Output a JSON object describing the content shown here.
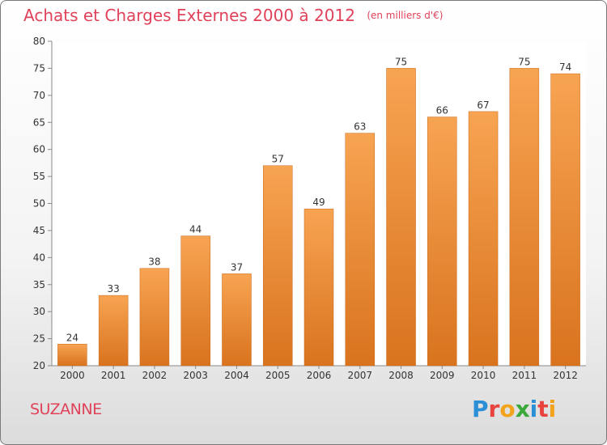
{
  "chart_data": {
    "type": "bar",
    "title": "Achats et Charges Externes 2000 à 2012",
    "unit": "(en milliers d'€)",
    "categories": [
      "2000",
      "2001",
      "2002",
      "2003",
      "2004",
      "2005",
      "2006",
      "2007",
      "2008",
      "2009",
      "2010",
      "2011",
      "2012"
    ],
    "values": [
      24,
      33,
      38,
      44,
      37,
      57,
      49,
      63,
      75,
      66,
      67,
      75,
      74
    ],
    "ylim": [
      20,
      80
    ],
    "yticks": [
      20,
      25,
      30,
      35,
      40,
      45,
      50,
      55,
      60,
      65,
      70,
      75,
      80
    ],
    "grid": false,
    "bar_color_top": "#f7a452",
    "bar_color_bottom": "#d9731e"
  },
  "city": "SUZANNE",
  "logo": {
    "letters": [
      {
        "ch": "P",
        "color": "#2b8fd6"
      },
      {
        "ch": "r",
        "color": "#e8433f"
      },
      {
        "ch": "o",
        "color": "#f2a31b"
      },
      {
        "ch": "x",
        "color": "#3aa83a"
      },
      {
        "ch": "i",
        "color": "#2b8fd6"
      },
      {
        "ch": "t",
        "color": "#e8433f"
      },
      {
        "ch": "i",
        "color": "#f2a31b"
      }
    ]
  }
}
